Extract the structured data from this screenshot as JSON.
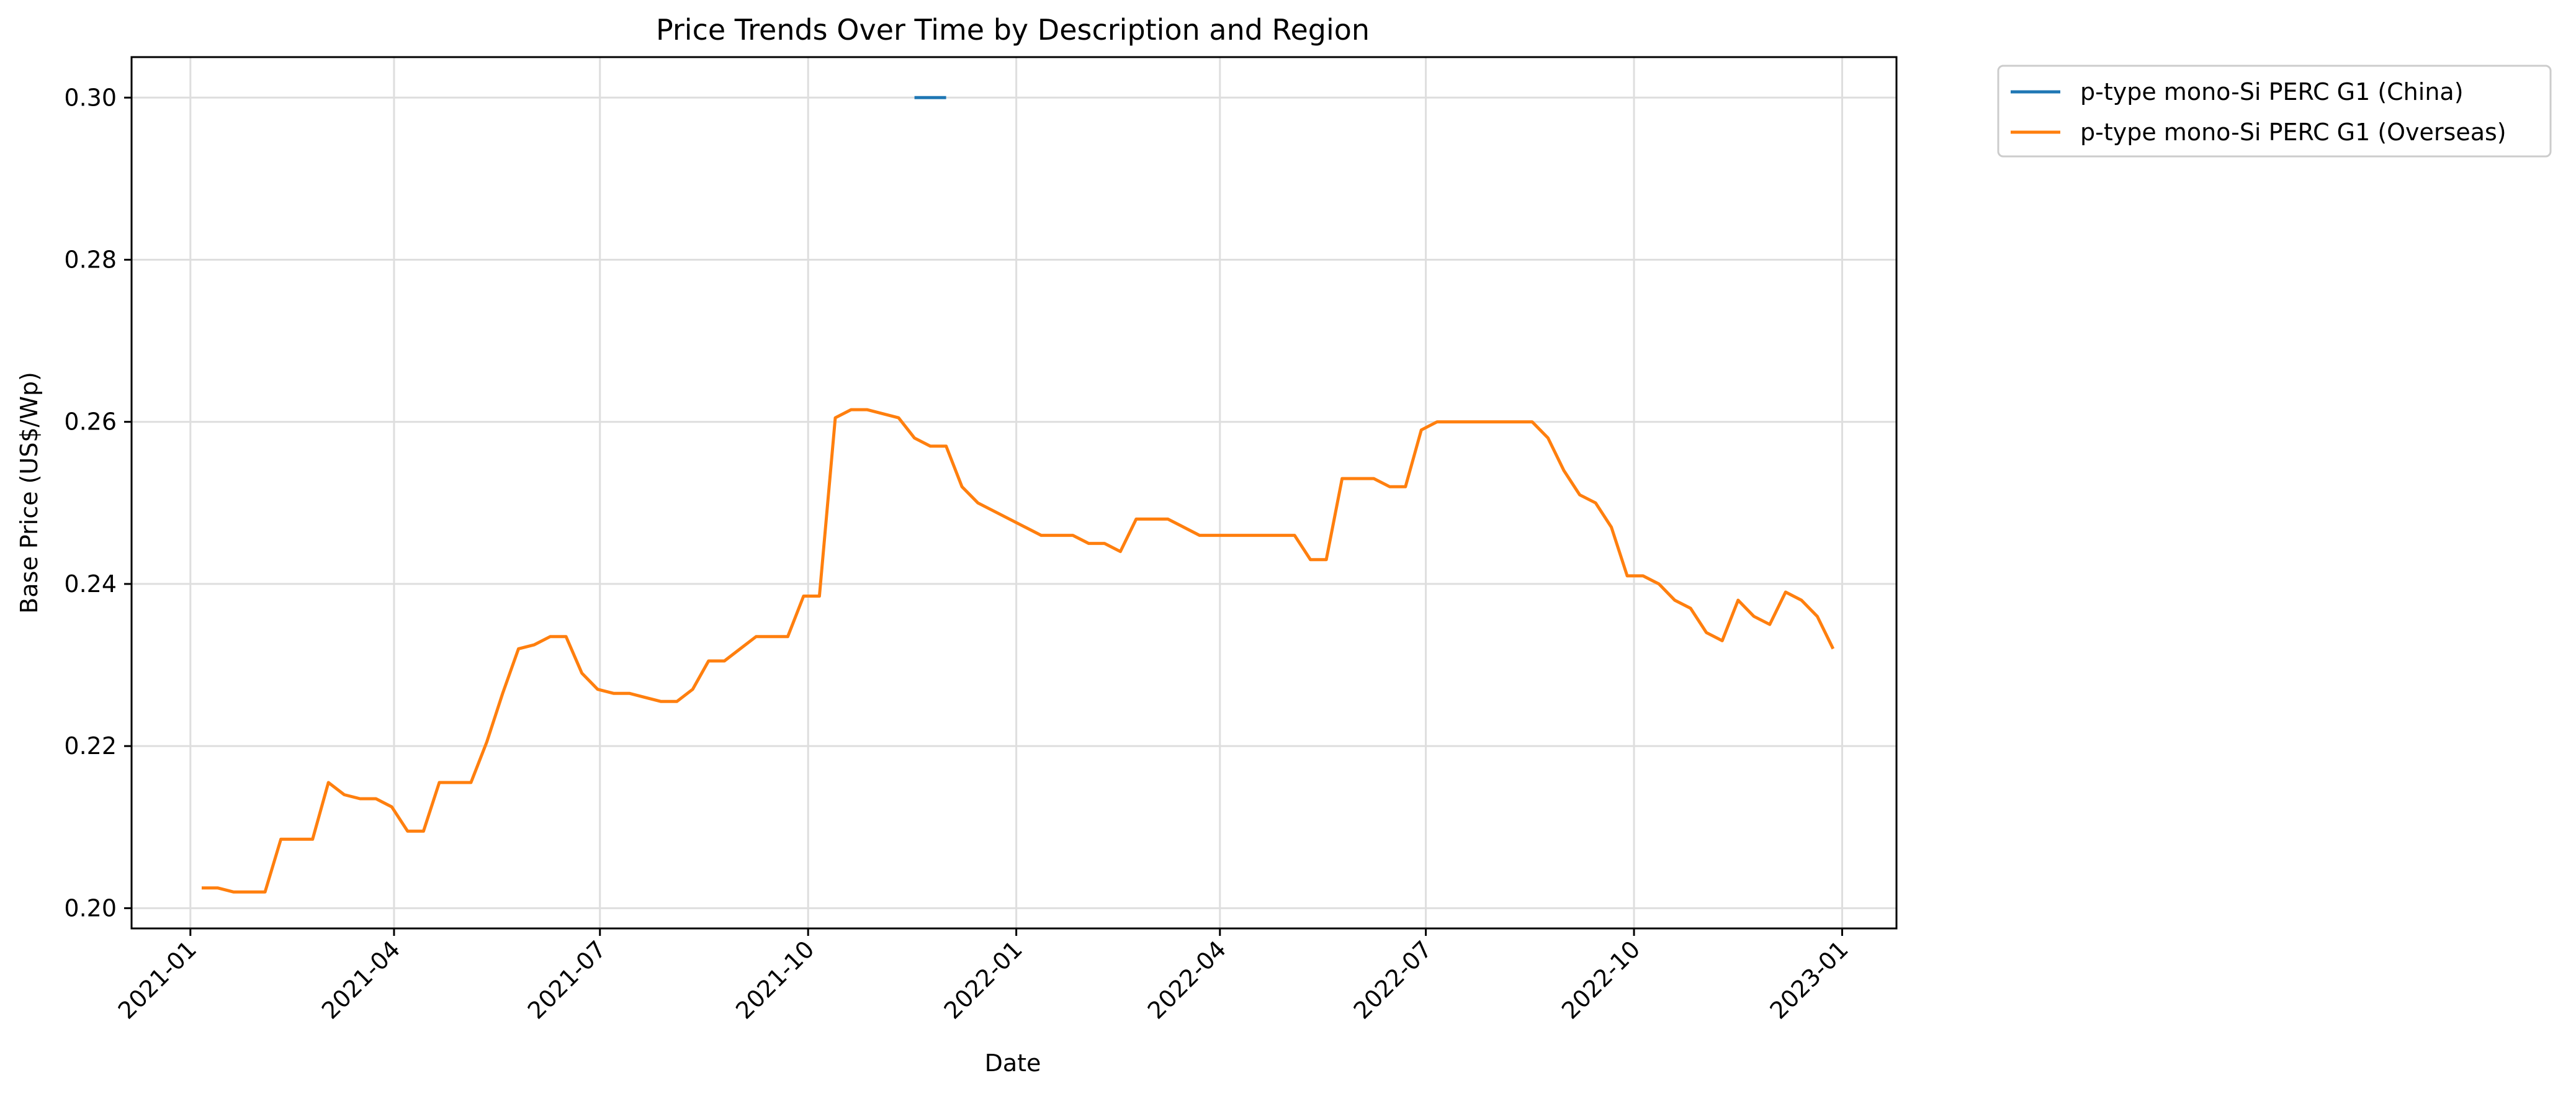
{
  "chart_data": {
    "type": "line",
    "title": "Price Trends Over Time by Description and Region",
    "xlabel": "Date",
    "ylabel": "Base Price (US$/Wp)",
    "x_ticks": [
      "2021-01",
      "2021-04",
      "2021-07",
      "2021-10",
      "2022-01",
      "2022-04",
      "2022-07",
      "2022-10",
      "2023-01"
    ],
    "y_ticks": [
      "0.20",
      "0.22",
      "0.24",
      "0.26",
      "0.28",
      "0.30"
    ],
    "xlim": [
      "2020-12-06",
      "2023-01-25"
    ],
    "ylim": [
      0.1975,
      0.305
    ],
    "grid": true,
    "legend_position": "outside-top-right",
    "series": [
      {
        "name": "p-type mono-Si PERC G1 (China)",
        "color": "#1f77b4",
        "points": [
          [
            "2021-11-17",
            0.3
          ],
          [
            "2021-12-01",
            0.3
          ]
        ]
      },
      {
        "name": "p-type mono-Si PERC G1 (Overseas)",
        "color": "#ff7f0e",
        "points": [
          [
            "2021-01-06",
            0.2025
          ],
          [
            "2021-01-13",
            0.2025
          ],
          [
            "2021-01-20",
            0.202
          ],
          [
            "2021-01-27",
            0.202
          ],
          [
            "2021-02-03",
            0.202
          ],
          [
            "2021-02-10",
            0.2085
          ],
          [
            "2021-02-17",
            0.2085
          ],
          [
            "2021-02-24",
            0.2085
          ],
          [
            "2021-03-03",
            0.2155
          ],
          [
            "2021-03-10",
            0.214
          ],
          [
            "2021-03-17",
            0.2135
          ],
          [
            "2021-03-24",
            0.2135
          ],
          [
            "2021-03-31",
            0.2125
          ],
          [
            "2021-04-07",
            0.2095
          ],
          [
            "2021-04-14",
            0.2095
          ],
          [
            "2021-04-21",
            0.2155
          ],
          [
            "2021-04-28",
            0.2155
          ],
          [
            "2021-05-05",
            0.2155
          ],
          [
            "2021-05-12",
            0.2205
          ],
          [
            "2021-05-19",
            0.2265
          ],
          [
            "2021-05-26",
            0.232
          ],
          [
            "2021-06-02",
            0.2325
          ],
          [
            "2021-06-09",
            0.2335
          ],
          [
            "2021-06-16",
            0.2335
          ],
          [
            "2021-06-23",
            0.229
          ],
          [
            "2021-06-30",
            0.227
          ],
          [
            "2021-07-07",
            0.2265
          ],
          [
            "2021-07-14",
            0.2265
          ],
          [
            "2021-07-21",
            0.226
          ],
          [
            "2021-07-28",
            0.2255
          ],
          [
            "2021-08-04",
            0.2255
          ],
          [
            "2021-08-11",
            0.227
          ],
          [
            "2021-08-18",
            0.2305
          ],
          [
            "2021-08-25",
            0.2305
          ],
          [
            "2021-09-01",
            0.232
          ],
          [
            "2021-09-08",
            0.2335
          ],
          [
            "2021-09-15",
            0.2335
          ],
          [
            "2021-09-22",
            0.2335
          ],
          [
            "2021-09-29",
            0.2385
          ],
          [
            "2021-10-06",
            0.2385
          ],
          [
            "2021-10-13",
            0.2605
          ],
          [
            "2021-10-20",
            0.2615
          ],
          [
            "2021-10-27",
            0.2615
          ],
          [
            "2021-11-10",
            0.2605
          ],
          [
            "2021-11-17",
            0.258
          ],
          [
            "2021-11-24",
            0.257
          ],
          [
            "2021-12-01",
            0.257
          ],
          [
            "2021-12-08",
            0.252
          ],
          [
            "2021-12-15",
            0.25
          ],
          [
            "2022-01-05",
            0.247
          ],
          [
            "2022-01-12",
            0.246
          ],
          [
            "2022-01-19",
            0.246
          ],
          [
            "2022-01-26",
            0.246
          ],
          [
            "2022-02-02",
            0.245
          ],
          [
            "2022-02-09",
            0.245
          ],
          [
            "2022-02-16",
            0.244
          ],
          [
            "2022-02-23",
            0.248
          ],
          [
            "2022-03-02",
            0.248
          ],
          [
            "2022-03-09",
            0.248
          ],
          [
            "2022-03-16",
            0.247
          ],
          [
            "2022-03-23",
            0.246
          ],
          [
            "2022-03-30",
            0.246
          ],
          [
            "2022-04-06",
            0.246
          ],
          [
            "2022-04-13",
            0.246
          ],
          [
            "2022-04-20",
            0.246
          ],
          [
            "2022-04-27",
            0.246
          ],
          [
            "2022-05-04",
            0.246
          ],
          [
            "2022-05-11",
            0.243
          ],
          [
            "2022-05-18",
            0.243
          ],
          [
            "2022-05-25",
            0.253
          ],
          [
            "2022-06-01",
            0.253
          ],
          [
            "2022-06-08",
            0.253
          ],
          [
            "2022-06-15",
            0.252
          ],
          [
            "2022-06-22",
            0.252
          ],
          [
            "2022-06-29",
            0.259
          ],
          [
            "2022-07-06",
            0.26
          ],
          [
            "2022-07-13",
            0.26
          ],
          [
            "2022-07-20",
            0.26
          ],
          [
            "2022-07-27",
            0.26
          ],
          [
            "2022-08-03",
            0.26
          ],
          [
            "2022-08-10",
            0.26
          ],
          [
            "2022-08-17",
            0.26
          ],
          [
            "2022-08-24",
            0.258
          ],
          [
            "2022-08-31",
            0.254
          ],
          [
            "2022-09-07",
            0.251
          ],
          [
            "2022-09-14",
            0.25
          ],
          [
            "2022-09-21",
            0.247
          ],
          [
            "2022-09-28",
            0.241
          ],
          [
            "2022-10-05",
            0.241
          ],
          [
            "2022-10-12",
            0.24
          ],
          [
            "2022-10-19",
            0.238
          ],
          [
            "2022-10-26",
            0.237
          ],
          [
            "2022-11-02",
            0.234
          ],
          [
            "2022-11-09",
            0.233
          ],
          [
            "2022-11-16",
            0.238
          ],
          [
            "2022-11-23",
            0.236
          ],
          [
            "2022-11-30",
            0.235
          ],
          [
            "2022-12-07",
            0.239
          ],
          [
            "2022-12-14",
            0.238
          ],
          [
            "2022-12-21",
            0.236
          ],
          [
            "2022-12-28",
            0.232
          ]
        ]
      }
    ]
  }
}
